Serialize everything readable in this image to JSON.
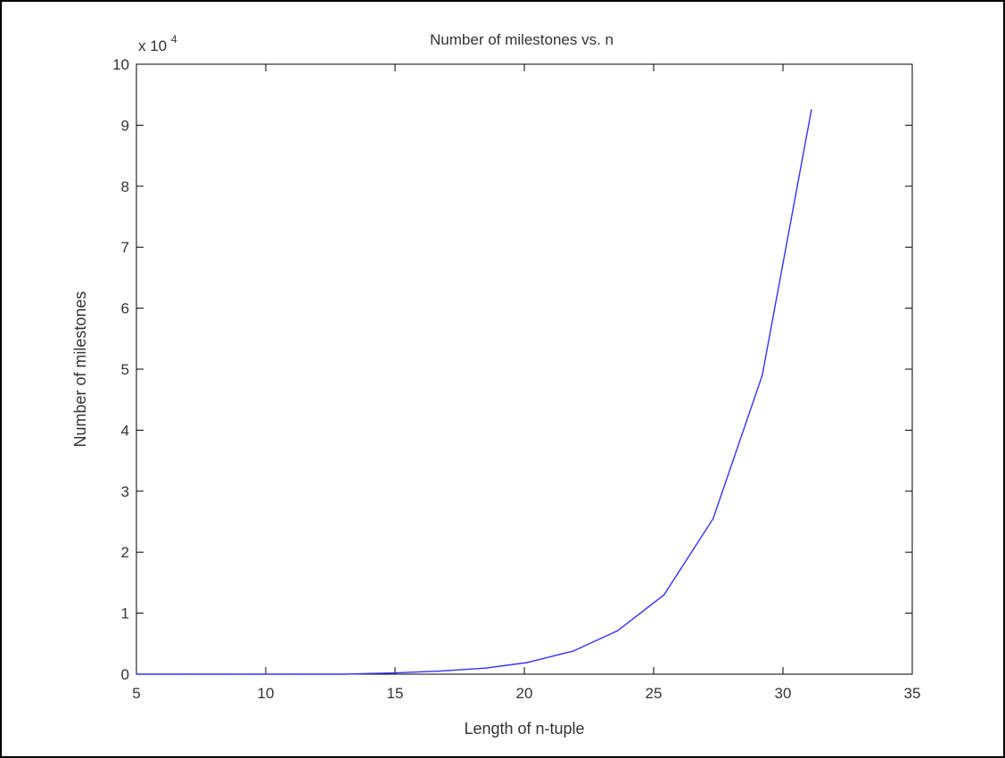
{
  "chart_data": {
    "type": "line",
    "title": "Number of milestones vs. n",
    "xlabel": "Length of n-tuple",
    "ylabel": "Number of milestones",
    "xlim": [
      5,
      35
    ],
    "ylim": [
      0,
      10
    ],
    "y_scale_label": "x 10",
    "y_scale_exponent": "4",
    "xticks": [
      "5",
      "10",
      "15",
      "20",
      "25",
      "30",
      "35"
    ],
    "yticks": [
      "0",
      "1",
      "2",
      "3",
      "4",
      "5",
      "6",
      "7",
      "8",
      "9",
      "10"
    ],
    "grid": false,
    "line_color": "#3333ff",
    "series": [
      {
        "x": [
          5,
          7,
          9,
          11,
          13,
          15,
          16.7,
          18.5,
          20.1,
          21.9,
          23.6,
          25.4,
          27.3,
          29.2,
          31.1
        ],
        "y": [
          0,
          0,
          0,
          0,
          0,
          0.02,
          0.05,
          0.1,
          0.19,
          0.38,
          0.71,
          1.3,
          2.55,
          4.9,
          9.25
        ]
      }
    ]
  }
}
